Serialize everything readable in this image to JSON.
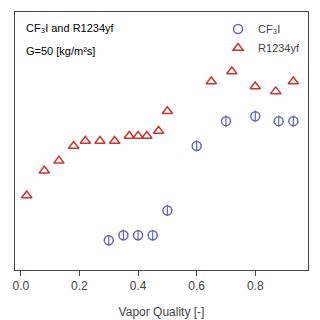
{
  "chart_data": {
    "type": "scatter",
    "xlabel": "Vapor Quality [-]",
    "annotations": [
      "CF₃I and R1234yf",
      "G=50 [kg/m²s]"
    ],
    "series": [
      {
        "name": "CF₃I",
        "color": "#6666bb",
        "marker": "circle",
        "x": [
          0.3,
          0.35,
          0.4,
          0.45,
          0.5,
          0.6,
          0.7,
          0.8,
          0.88,
          0.93
        ],
        "values": [
          0.36,
          0.37,
          0.37,
          0.37,
          0.42,
          0.55,
          0.6,
          0.61,
          0.6,
          0.6
        ]
      },
      {
        "name": "R1234yf",
        "color": "#cc3333",
        "marker": "triangle",
        "x": [
          0.02,
          0.08,
          0.13,
          0.18,
          0.22,
          0.27,
          0.32,
          0.37,
          0.4,
          0.43,
          0.47,
          0.5,
          0.65,
          0.72,
          0.8,
          0.87,
          0.93
        ],
        "values": [
          0.45,
          0.5,
          0.52,
          0.55,
          0.56,
          0.56,
          0.56,
          0.57,
          0.57,
          0.57,
          0.58,
          0.62,
          0.68,
          0.7,
          0.67,
          0.66,
          0.68
        ]
      }
    ],
    "xlim": [
      -0.02,
      0.98
    ],
    "xticks": [
      {
        "value": 0.0,
        "label": "0.0"
      },
      0.2,
      0.4,
      0.6,
      0.8
    ],
    "ylim": [
      0.3,
      0.82
    ],
    "yticks": [],
    "tick_labels": "x",
    "grid": false,
    "legend": "upper right"
  }
}
